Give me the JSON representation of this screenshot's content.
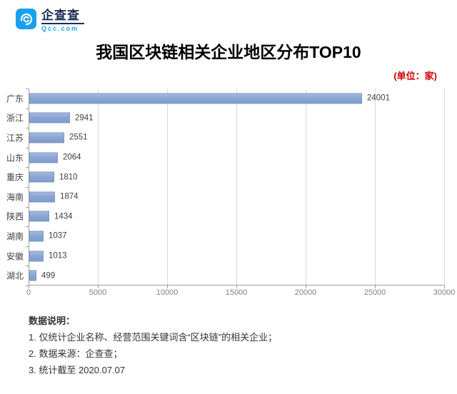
{
  "logo": {
    "name": "企查查",
    "domain": "Qcc.com",
    "brand_color": "#199ff0"
  },
  "header": {
    "title": "我国区块链相关企业地区分布TOP10",
    "unit_label": "(单位：家)",
    "unit_color": "#cc0000"
  },
  "chart_data": {
    "type": "bar",
    "orientation": "horizontal",
    "title": "我国区块链相关企业地区分布TOP10",
    "categories": [
      "广东",
      "浙江",
      "江苏",
      "山东",
      "重庆",
      "海南",
      "陕西",
      "湖南",
      "安徽",
      "湖北"
    ],
    "values": [
      24001,
      2941,
      2551,
      2064,
      1810,
      1874,
      1434,
      1037,
      1013,
      499
    ],
    "xlabel": "",
    "ylabel": "",
    "xlim": [
      0,
      30000
    ],
    "xticks": [
      "0",
      "5000",
      "10000",
      "15000",
      "20000",
      "25000",
      "30000"
    ],
    "grid": "vertical",
    "legend": "none",
    "bar_color": "#8ba6d3",
    "value_labels": true
  },
  "notes": {
    "heading": "数据说明：",
    "items": [
      "1. 仅统计企业名称、经营范围关键词含“区块链”的相关企业；",
      "2. 数据来源：企查查；",
      "3. 统计截至 2020.07.07"
    ]
  }
}
